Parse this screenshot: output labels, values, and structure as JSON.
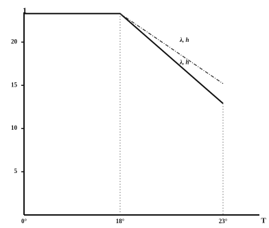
{
  "chart_data": {
    "type": "line",
    "y_label": "1",
    "x_label": "T",
    "categories": [
      "0°",
      "18°",
      "23°"
    ],
    "series": [
      {
        "name": "λ, h",
        "color": "#111111",
        "dash": "solid",
        "values": [
          23.3,
          23.3,
          12.9
        ]
      },
      {
        "name": "λ, h",
        "color": "#333333",
        "dash": "dashed",
        "values": [
          null,
          23.3,
          15.2
        ]
      }
    ],
    "ylim": [
      0,
      24
    ],
    "yticks": [
      5,
      10,
      15,
      20
    ]
  }
}
